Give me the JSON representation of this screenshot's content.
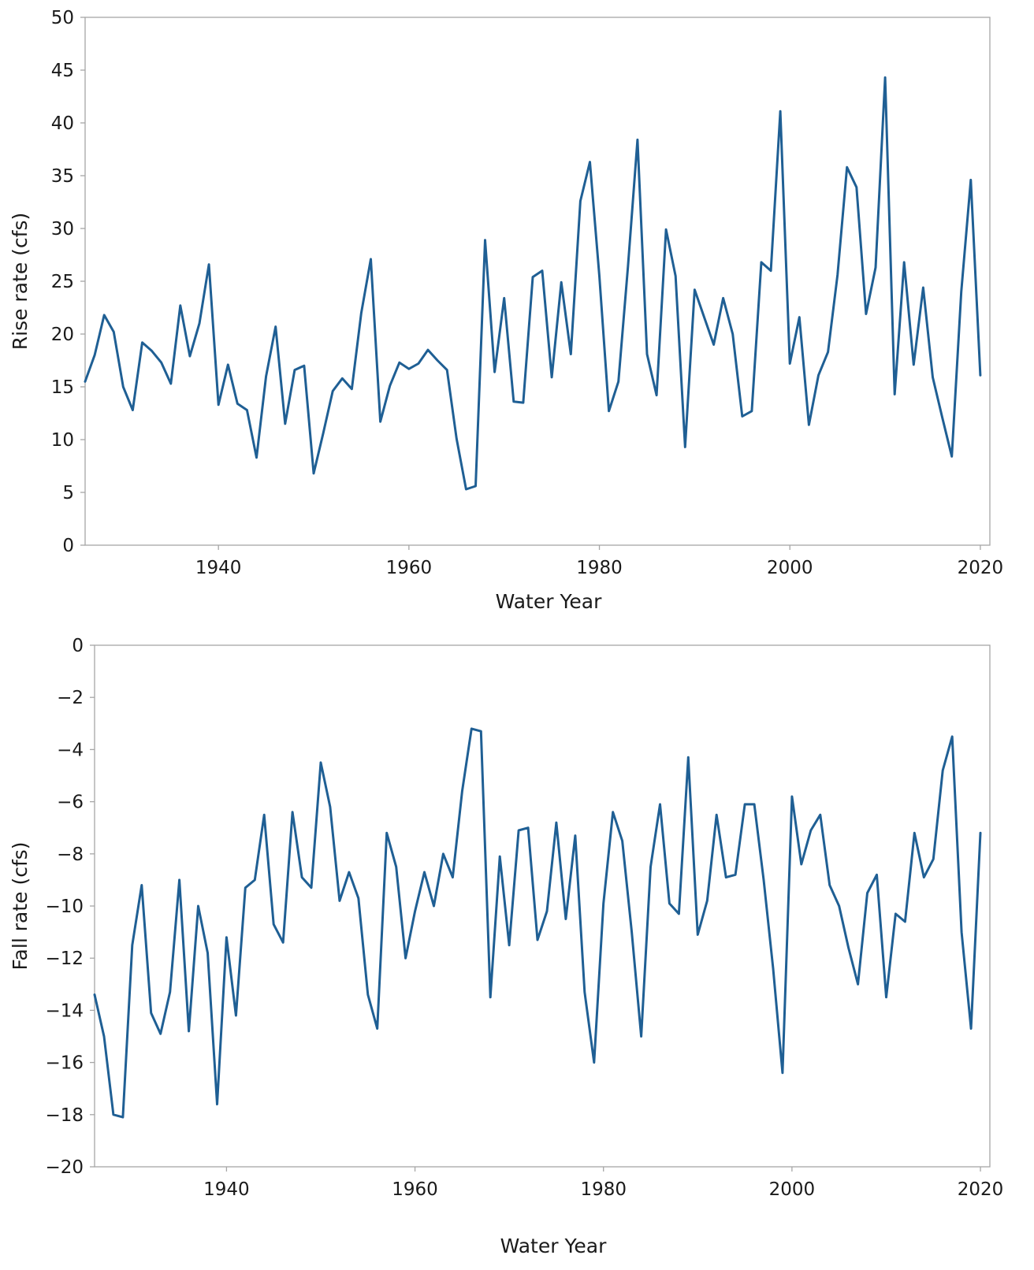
{
  "chart_data": [
    {
      "type": "line",
      "title": "",
      "xlabel": "Water Year",
      "ylabel": "Rise rate (cfs)",
      "xlim": [
        1926,
        2021
      ],
      "ylim": [
        0,
        50
      ],
      "xticks": [
        1940,
        1960,
        1980,
        2000,
        2020
      ],
      "yticks": [
        0,
        5,
        10,
        15,
        20,
        25,
        30,
        35,
        40,
        45,
        50
      ],
      "grid": false,
      "color": "#1f5f94",
      "x": [
        1926,
        1927,
        1928,
        1929,
        1930,
        1931,
        1932,
        1933,
        1934,
        1935,
        1936,
        1937,
        1938,
        1939,
        1940,
        1941,
        1942,
        1943,
        1944,
        1945,
        1946,
        1947,
        1948,
        1949,
        1950,
        1951,
        1952,
        1953,
        1954,
        1955,
        1956,
        1957,
        1958,
        1959,
        1960,
        1961,
        1962,
        1963,
        1964,
        1965,
        1966,
        1967,
        1968,
        1969,
        1970,
        1971,
        1972,
        1973,
        1974,
        1975,
        1976,
        1977,
        1978,
        1979,
        1980,
        1981,
        1982,
        1983,
        1984,
        1985,
        1986,
        1987,
        1988,
        1989,
        1990,
        1991,
        1992,
        1993,
        1994,
        1995,
        1996,
        1997,
        1998,
        1999,
        2000,
        2001,
        2002,
        2003,
        2004,
        2005,
        2006,
        2007,
        2008,
        2009,
        2010,
        2011,
        2012,
        2013,
        2014,
        2015,
        2016,
        2017,
        2018,
        2019,
        2020
      ],
      "values": [
        15.5,
        18.0,
        21.8,
        20.2,
        15.0,
        12.8,
        19.2,
        18.4,
        17.3,
        15.3,
        22.7,
        17.9,
        21.0,
        26.6,
        13.3,
        17.1,
        13.4,
        12.8,
        8.3,
        16.0,
        20.7,
        11.5,
        16.6,
        17.0,
        6.8,
        10.6,
        14.6,
        15.8,
        14.8,
        22.0,
        27.1,
        11.7,
        15.1,
        17.3,
        16.7,
        17.2,
        18.5,
        17.5,
        16.6,
        10.1,
        5.3,
        5.6,
        28.9,
        16.4,
        23.4,
        13.6,
        13.5,
        25.4,
        26.0,
        15.9,
        24.9,
        18.1,
        32.6,
        36.3,
        25.5,
        12.7,
        15.5,
        26.4,
        38.4,
        18.1,
        14.2,
        29.9,
        25.5,
        9.3,
        24.2,
        21.6,
        19.0,
        23.4,
        20.0,
        12.2,
        12.7,
        26.8,
        26.0,
        41.1,
        17.2,
        21.6,
        11.4,
        16.1,
        18.3,
        25.6,
        35.8,
        33.9,
        21.9,
        26.3,
        44.3,
        14.3,
        26.8,
        17.1,
        24.4,
        15.9,
        12.1,
        8.4,
        24.0,
        34.6,
        16.1
      ]
    },
    {
      "type": "line",
      "title": "",
      "xlabel": "Water Year",
      "ylabel": "Fall rate (cfs)",
      "xlim": [
        1926,
        2021
      ],
      "ylim": [
        -20,
        0
      ],
      "xticks": [
        1940,
        1960,
        1980,
        2000,
        2020
      ],
      "yticks": [
        0,
        -2,
        -4,
        -6,
        -8,
        -10,
        -12,
        -14,
        -16,
        -18,
        -20
      ],
      "ytick_labels": [
        "0",
        "−2",
        "−4",
        "−6",
        "−8",
        "−10",
        "−12",
        "−14",
        "−16",
        "−18",
        "−20"
      ],
      "grid": false,
      "color": "#1f5f94",
      "x": [
        1926,
        1927,
        1928,
        1929,
        1930,
        1931,
        1932,
        1933,
        1934,
        1935,
        1936,
        1937,
        1938,
        1939,
        1940,
        1941,
        1942,
        1943,
        1944,
        1945,
        1946,
        1947,
        1948,
        1949,
        1950,
        1951,
        1952,
        1953,
        1954,
        1955,
        1956,
        1957,
        1958,
        1959,
        1960,
        1961,
        1962,
        1963,
        1964,
        1965,
        1966,
        1967,
        1968,
        1969,
        1970,
        1971,
        1972,
        1973,
        1974,
        1975,
        1976,
        1977,
        1978,
        1979,
        1980,
        1981,
        1982,
        1983,
        1984,
        1985,
        1986,
        1987,
        1988,
        1989,
        1990,
        1991,
        1992,
        1993,
        1994,
        1995,
        1996,
        1997,
        1998,
        1999,
        2000,
        2001,
        2002,
        2003,
        2004,
        2005,
        2006,
        2007,
        2008,
        2009,
        2010,
        2011,
        2012,
        2013,
        2014,
        2015,
        2016,
        2017,
        2018,
        2019,
        2020
      ],
      "values": [
        -13.4,
        -15.0,
        -18.0,
        -18.1,
        -11.5,
        -9.2,
        -14.1,
        -14.9,
        -13.3,
        -9.0,
        -14.8,
        -10.0,
        -11.8,
        -17.6,
        -11.2,
        -14.2,
        -9.3,
        -9.0,
        -6.5,
        -10.7,
        -11.4,
        -6.4,
        -8.9,
        -9.3,
        -4.5,
        -6.2,
        -9.8,
        -8.7,
        -9.7,
        -13.4,
        -14.7,
        -7.2,
        -8.5,
        -12.0,
        -10.2,
        -8.7,
        -10.0,
        -8.0,
        -8.9,
        -5.6,
        -3.2,
        -3.3,
        -13.5,
        -8.1,
        -11.5,
        -7.1,
        -7.0,
        -11.3,
        -10.2,
        -6.8,
        -10.5,
        -7.3,
        -13.3,
        -16.0,
        -9.9,
        -6.4,
        -7.5,
        -11.0,
        -15.0,
        -8.5,
        -6.1,
        -9.9,
        -10.3,
        -4.3,
        -11.1,
        -9.8,
        -6.5,
        -8.9,
        -8.8,
        -6.1,
        -6.1,
        -9.0,
        -12.4,
        -16.4,
        -5.8,
        -8.4,
        -7.1,
        -6.5,
        -9.2,
        -10.0,
        -11.6,
        -13.0,
        -9.5,
        -8.8,
        -13.5,
        -10.3,
        -10.6,
        -7.2,
        -8.9,
        -8.2,
        -4.8,
        -3.5,
        -11.0,
        -14.7,
        -7.2
      ]
    }
  ]
}
